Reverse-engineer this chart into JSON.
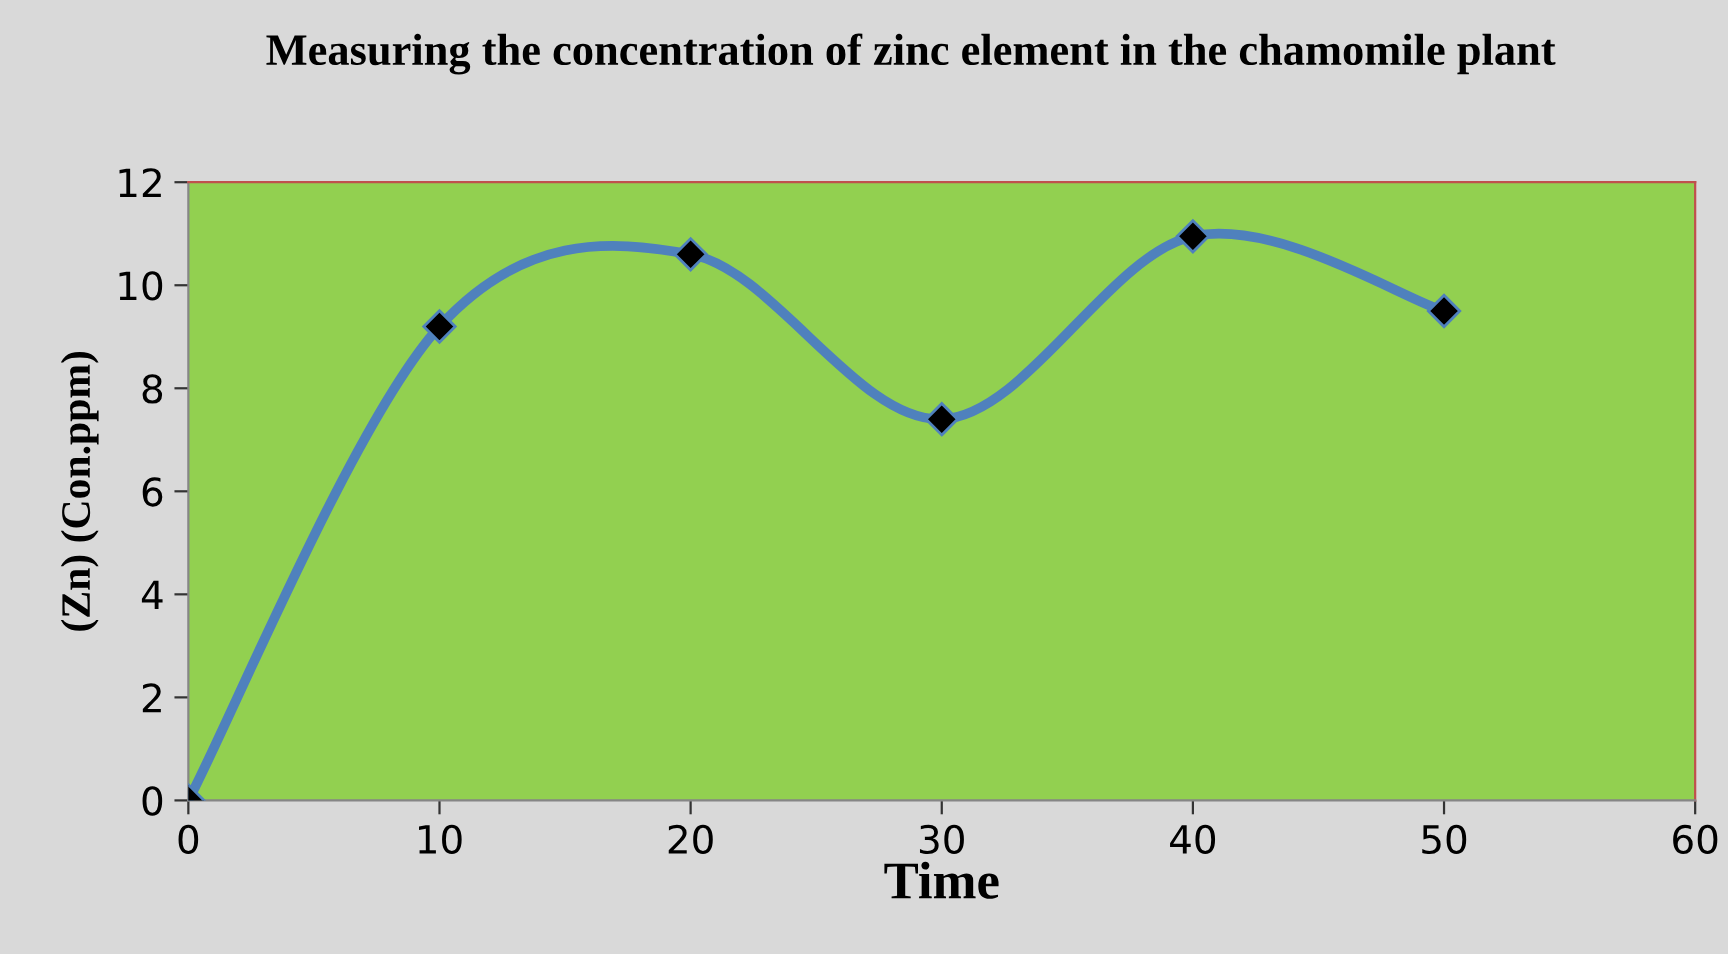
{
  "chart_data": {
    "type": "line",
    "title": "Measuring the concentration of zinc element in the chamomile plant",
    "xlabel": "Time",
    "ylabel": "(Zn) (Con.ppm)",
    "x": [
      0,
      10,
      20,
      30,
      40,
      50
    ],
    "series": [
      {
        "color": "#4f81bd",
        "values": [
          0,
          9.2,
          10.6,
          7.4,
          10.95,
          9.5
        ]
      }
    ],
    "xlim": [
      0,
      60
    ],
    "xticks": [
      0,
      10,
      20,
      30,
      40,
      50,
      60
    ],
    "ylim": [
      0,
      12
    ],
    "yticks": [
      0,
      2,
      4,
      6,
      8,
      10,
      12
    ],
    "grid": false,
    "legend": false,
    "marker": "diamond",
    "line_style": "solid"
  }
}
